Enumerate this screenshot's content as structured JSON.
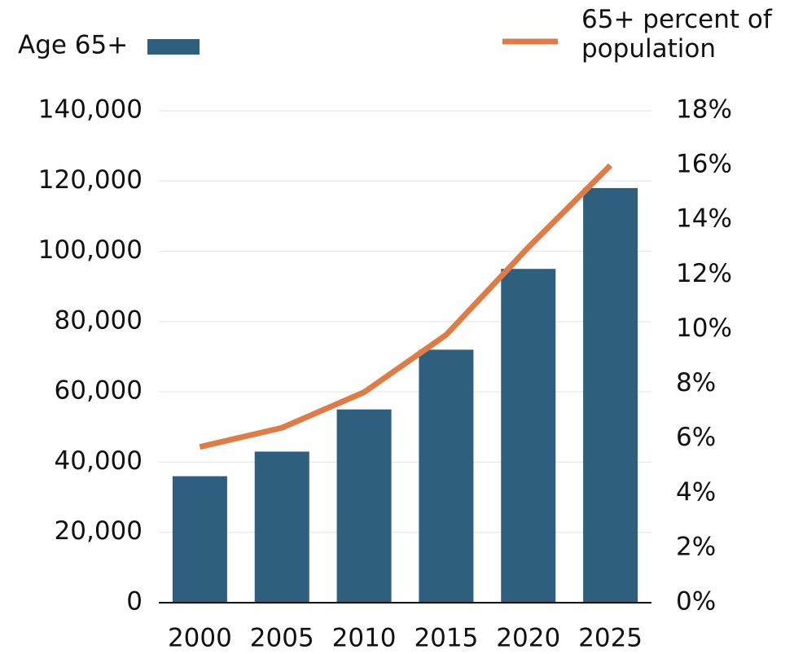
{
  "chart_data": {
    "type": "bar_line",
    "categories": [
      "2000",
      "2005",
      "2010",
      "2015",
      "2020",
      "2025"
    ],
    "series": [
      {
        "name": "Age 65+",
        "color": "#2e5f7f",
        "values": [
          36000,
          43000,
          55000,
          72000,
          95000,
          118000
        ]
      },
      {
        "name": "65+ percent of population",
        "color": "#e07b45",
        "axis": "y2",
        "values": [
          5.7,
          6.4,
          7.7,
          9.8,
          13.0,
          16.0
        ]
      }
    ],
    "ylim": [
      0,
      140000
    ],
    "yticks": [
      0,
      {
        "value": 20000,
        "label": "20,000"
      },
      {
        "value": 40000,
        "label": "40,000"
      },
      {
        "value": 60000,
        "label": "60,000"
      },
      {
        "value": 80000,
        "label": "80,000"
      },
      {
        "value": 100000,
        "label": "100,000"
      },
      {
        "value": 120000,
        "label": "120,000"
      },
      {
        "value": 140000,
        "label": "140,000"
      }
    ],
    "y2lim": [
      0,
      18
    ],
    "y2ticks": [
      {
        "value": 0,
        "label": "0%"
      },
      {
        "value": 2,
        "label": "2%"
      },
      {
        "value": 4,
        "label": "4%"
      },
      {
        "value": 6,
        "label": "6%"
      },
      {
        "value": 8,
        "label": "8%"
      },
      {
        "value": 10,
        "label": "10%"
      },
      {
        "value": 12,
        "label": "12%"
      },
      {
        "value": 14,
        "label": "14%"
      },
      {
        "value": 16,
        "label": "16%"
      },
      {
        "value": 18,
        "label": "18%"
      }
    ],
    "grid": true
  }
}
